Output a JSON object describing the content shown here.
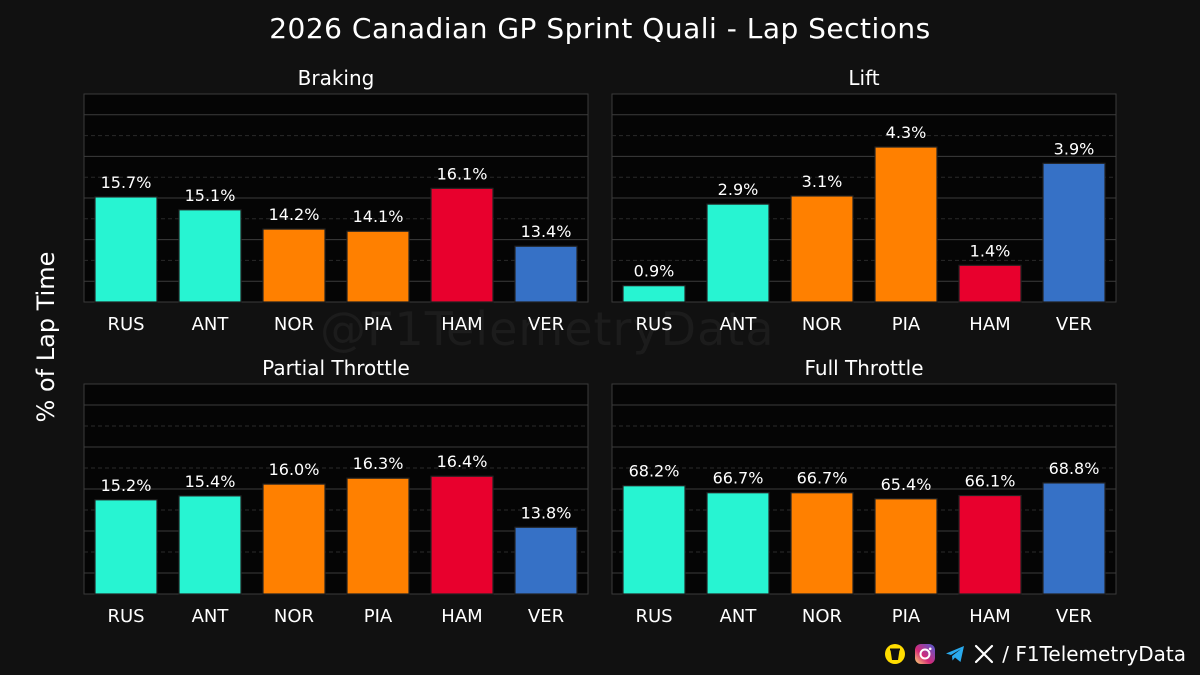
{
  "title": "2026 Canadian GP Sprint Quali - Lap Sections",
  "ylabel": "% of Lap Time",
  "watermark": "@F1TelemetryData",
  "footer": {
    "handle": "/ F1TelemetryData",
    "icons": [
      "buymeacoffee-icon",
      "instagram-icon",
      "telegram-icon",
      "x-icon"
    ]
  },
  "colors": {
    "background": "#111111",
    "plot_bg": "#050505",
    "RUS": "#27F4D2",
    "ANT": "#27F4D2",
    "NOR": "#FF8000",
    "PIA": "#FF8000",
    "HAM": "#E8002D",
    "VER": "#3671C6"
  },
  "chart_data": [
    {
      "type": "bar",
      "title": "Braking",
      "categories": [
        "RUS",
        "ANT",
        "NOR",
        "PIA",
        "HAM",
        "VER"
      ],
      "values": [
        15.7,
        15.1,
        14.2,
        14.1,
        16.1,
        13.4
      ],
      "labels": [
        "15.7%",
        "15.1%",
        "14.2%",
        "14.1%",
        "16.1%",
        "13.4%"
      ],
      "ylim": [
        10.8,
        20.5
      ],
      "grid": true
    },
    {
      "type": "bar",
      "title": "Lift",
      "categories": [
        "RUS",
        "ANT",
        "NOR",
        "PIA",
        "HAM",
        "VER"
      ],
      "values": [
        0.9,
        2.9,
        3.1,
        4.3,
        1.4,
        3.9
      ],
      "labels": [
        "0.9%",
        "2.9%",
        "3.1%",
        "4.3%",
        "1.4%",
        "3.9%"
      ],
      "ylim": [
        0.5,
        5.6
      ],
      "grid": true
    },
    {
      "type": "bar",
      "title": "Partial Throttle",
      "categories": [
        "RUS",
        "ANT",
        "NOR",
        "PIA",
        "HAM",
        "VER"
      ],
      "values": [
        15.2,
        15.4,
        16.0,
        16.3,
        16.4,
        13.8
      ],
      "labels": [
        "15.2%",
        "15.4%",
        "16.0%",
        "16.3%",
        "16.4%",
        "13.8%"
      ],
      "ylim": [
        10.4,
        21.1
      ],
      "grid": true
    },
    {
      "type": "bar",
      "title": "Full Throttle",
      "categories": [
        "RUS",
        "ANT",
        "NOR",
        "PIA",
        "HAM",
        "VER"
      ],
      "values": [
        68.2,
        66.7,
        66.7,
        65.4,
        66.1,
        68.8
      ],
      "labels": [
        "68.2%",
        "66.7%",
        "66.7%",
        "65.4%",
        "66.1%",
        "68.8%"
      ],
      "ylim": [
        45.0,
        90.0
      ],
      "grid": true
    }
  ]
}
